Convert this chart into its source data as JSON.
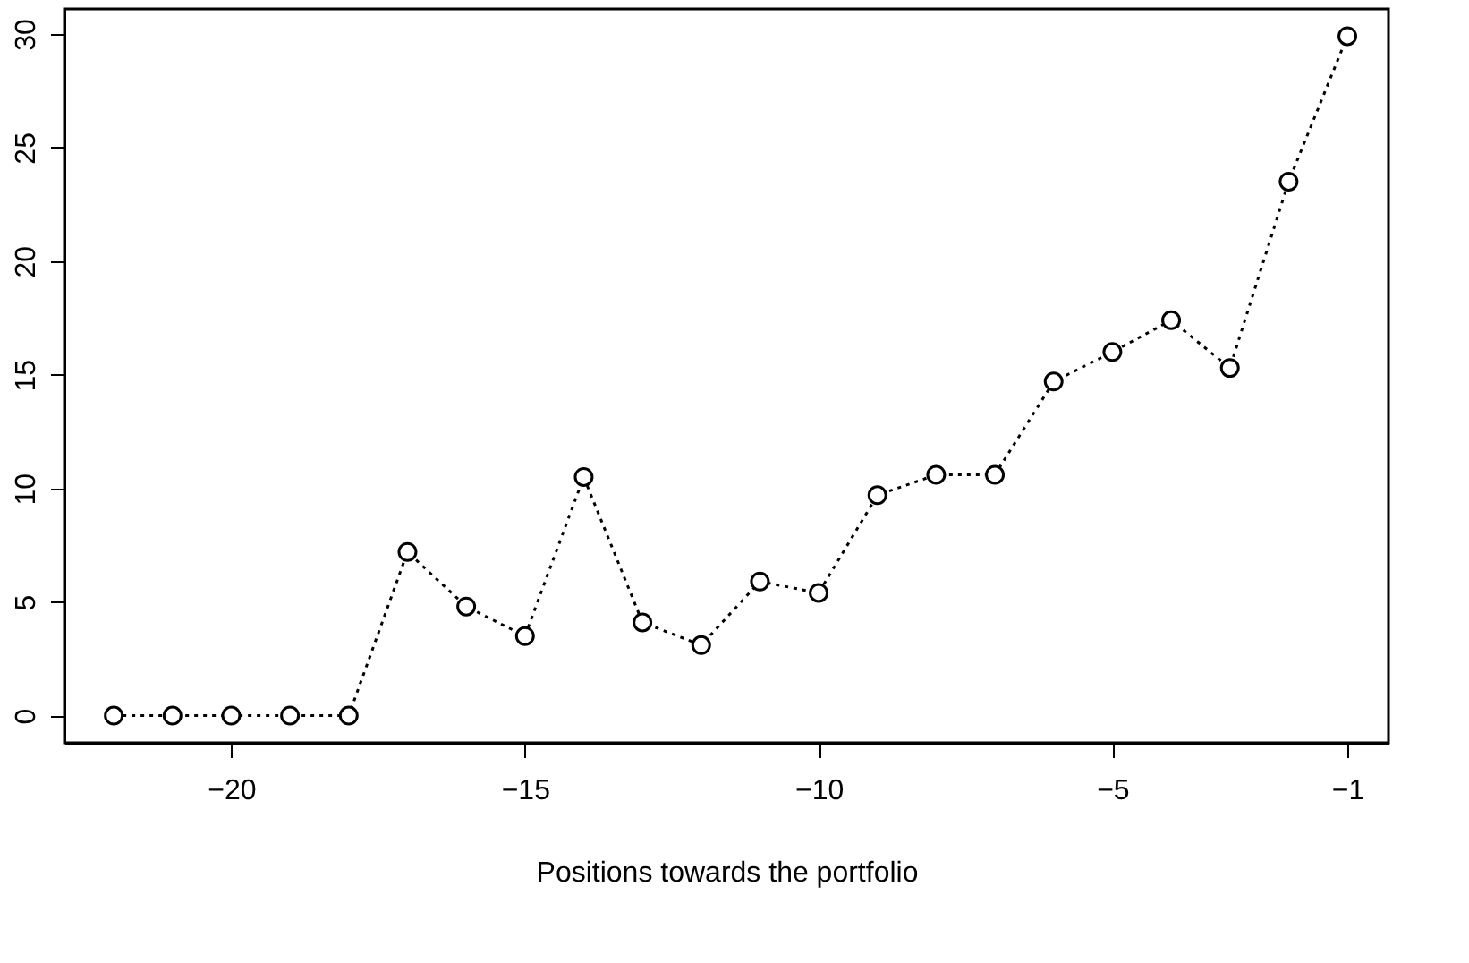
{
  "chart_data": {
    "type": "line",
    "xlabel": "Positions towards the portfolio",
    "x": [
      -22,
      -21,
      -20,
      -19,
      -18,
      -17,
      -16,
      -15,
      -14,
      -13,
      -12,
      -11,
      -10,
      -9,
      -8,
      -7,
      -6,
      -5,
      -4,
      -3,
      -2,
      -1
    ],
    "series": [
      {
        "color": "#000000",
        "values": [
          0,
          0,
          0,
          0,
          0,
          7.2,
          4.8,
          3.5,
          10.5,
          4.1,
          3.1,
          5.9,
          5.4,
          9.7,
          10.6,
          10.6,
          14.7,
          16.0,
          17.4,
          15.3,
          23.5,
          29.9
        ]
      }
    ],
    "xlim": [
      -22.84,
      -0.3
    ],
    "xticks": [
      -20,
      -15,
      -10,
      -5,
      -1
    ],
    "ylim": [
      -1.2,
      31.1
    ],
    "yticks": [
      0,
      5,
      10,
      15,
      20,
      25,
      30
    ],
    "marker": "circle",
    "line_style": "dotted",
    "grid": false,
    "legend": false
  }
}
